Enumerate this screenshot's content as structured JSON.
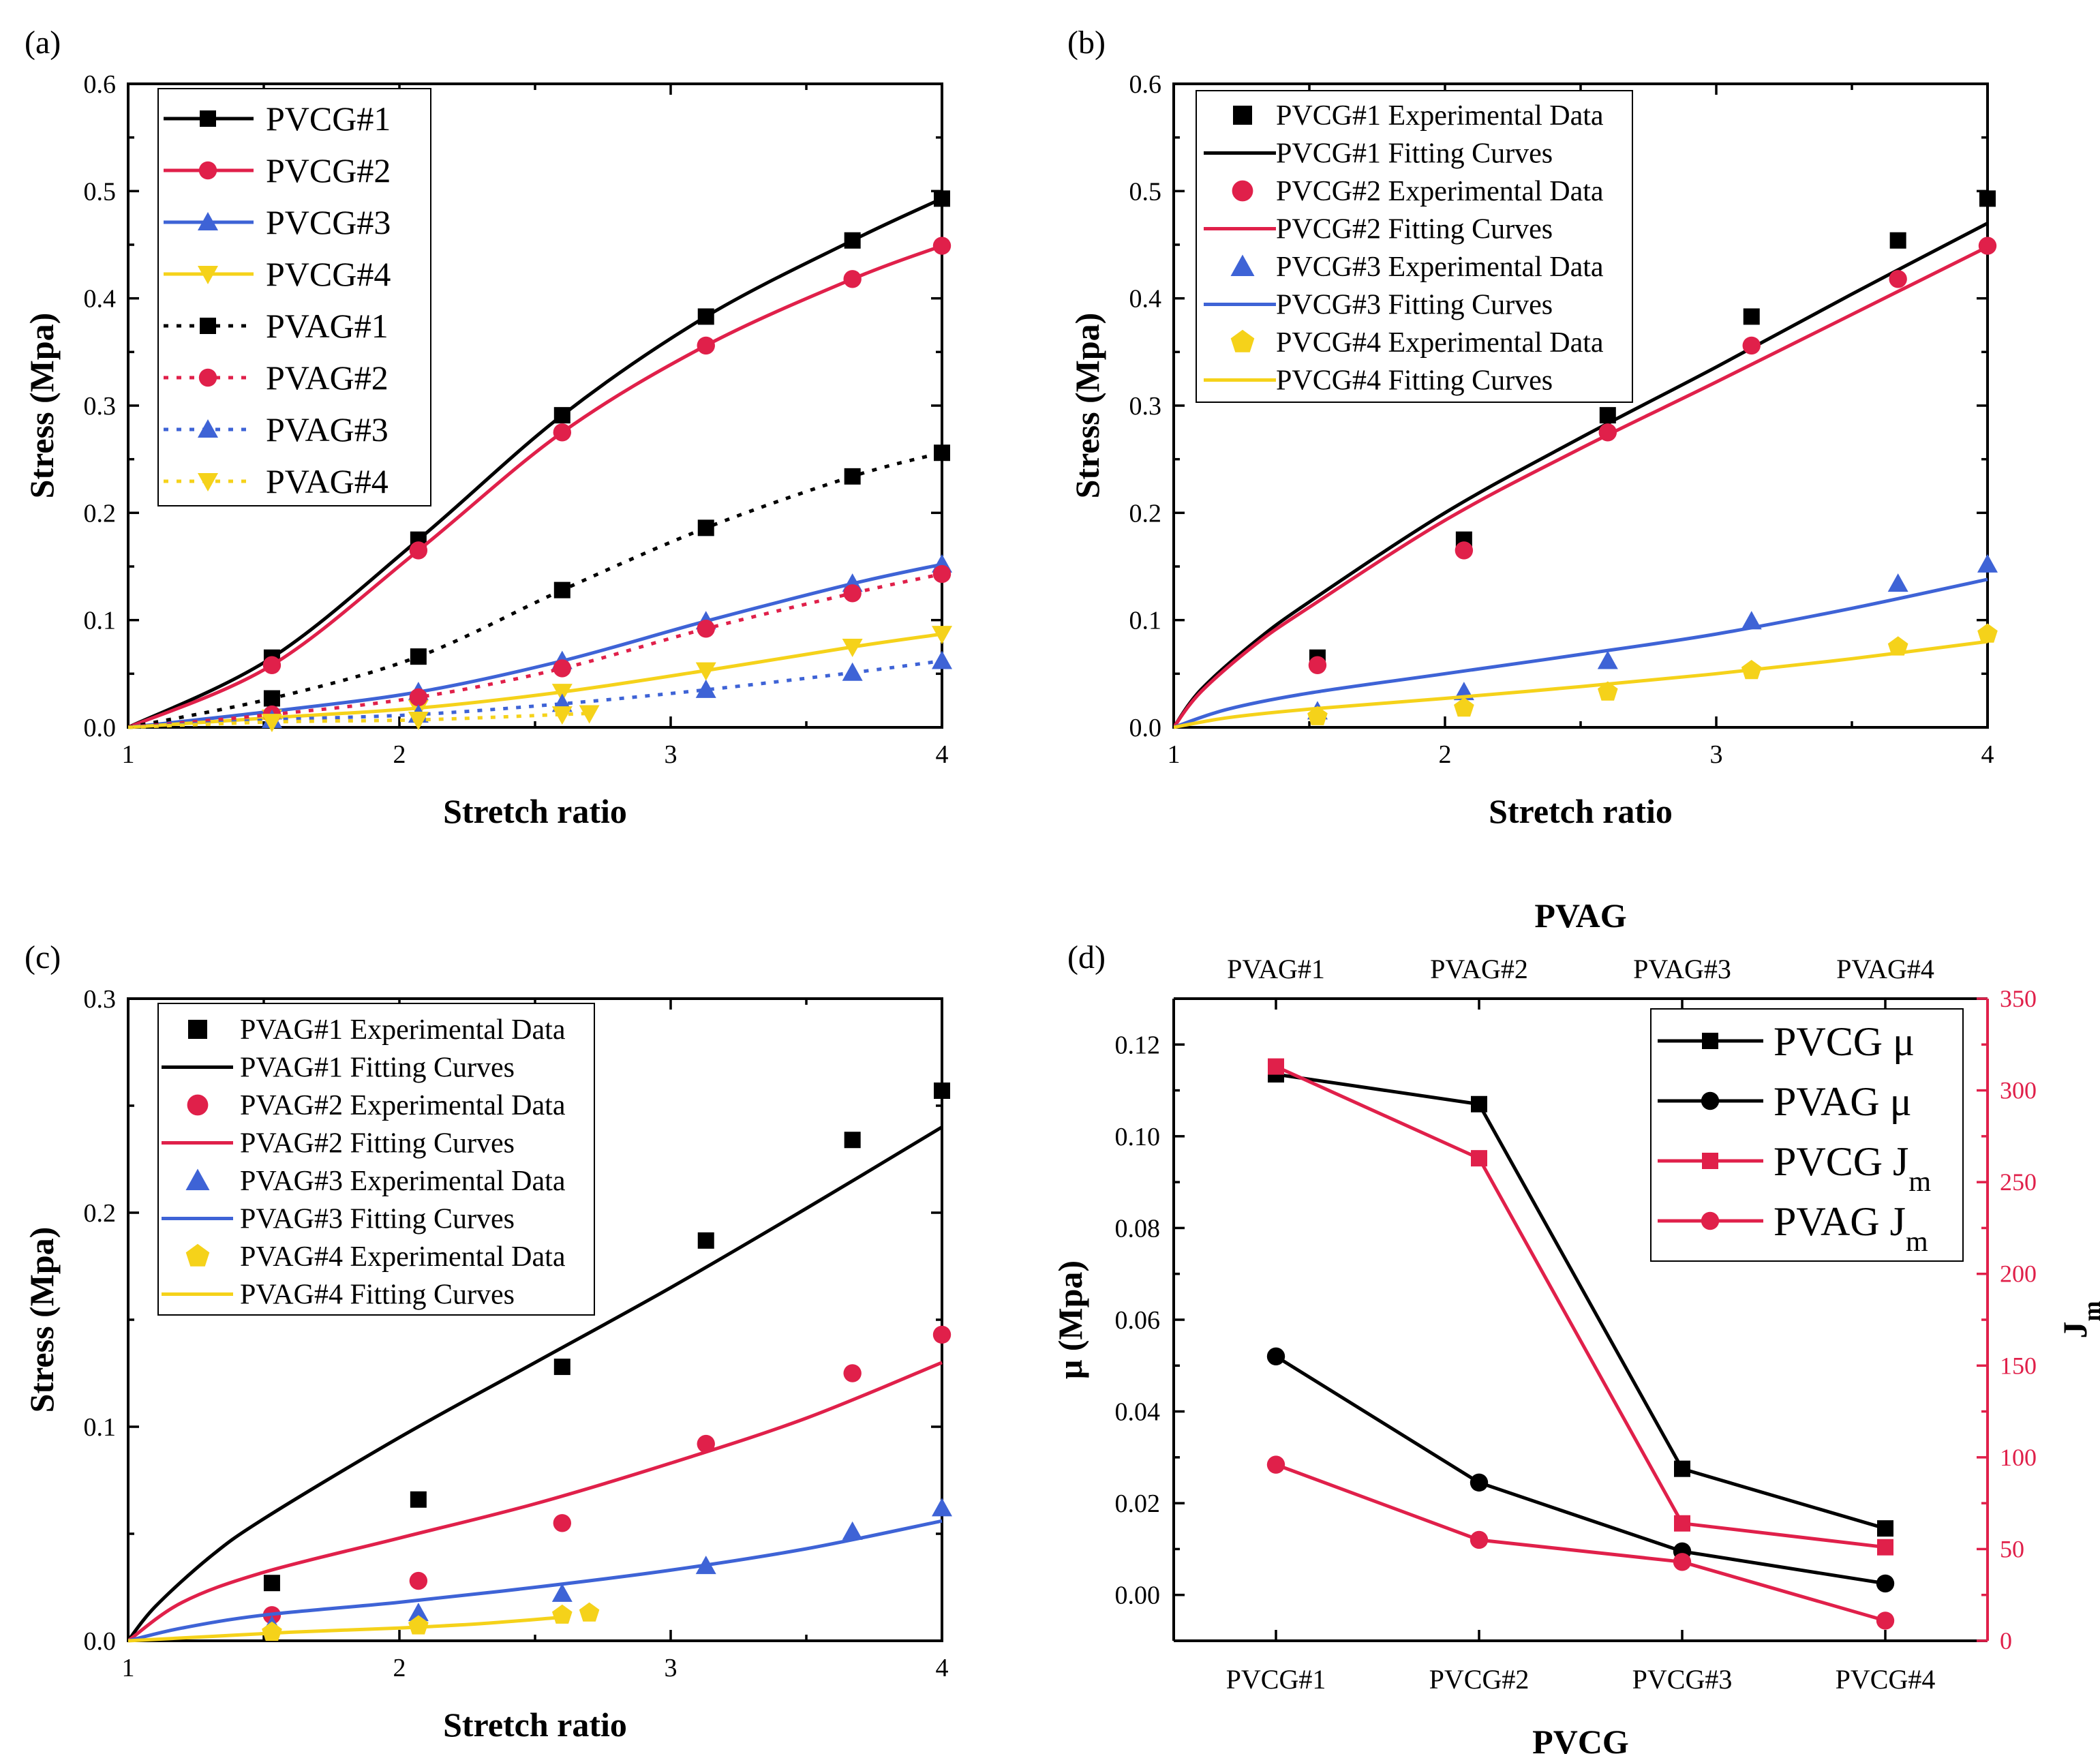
{
  "colors": {
    "black": "#000000",
    "red": "#e0204a",
    "blue": "#3e63d6",
    "yellow": "#f5d21a",
    "axis_red": "#e0204a"
  },
  "chart_data": [
    {
      "panel": "(a)",
      "type": "line",
      "title": "",
      "xlabel": "Stretch ratio",
      "ylabel": "Stress (Mpa)",
      "xlim": [
        1,
        4
      ],
      "ylim": [
        0,
        0.6
      ],
      "xticks": [
        "1",
        "2",
        "3",
        "4"
      ],
      "yticks": [
        "0.0",
        "0.1",
        "0.2",
        "0.3",
        "0.4",
        "0.5",
        "0.6"
      ],
      "legend_position": "top-left",
      "series": [
        {
          "name": "PVCG#1",
          "color": "black",
          "marker": "square",
          "dash": "solid",
          "x": [
            1.0,
            1.53,
            2.07,
            2.6,
            3.13,
            3.67,
            4.0
          ],
          "y": [
            0.0,
            0.065,
            0.175,
            0.291,
            0.383,
            0.454,
            0.493
          ]
        },
        {
          "name": "PVCG#2",
          "color": "red",
          "marker": "circle",
          "dash": "solid",
          "x": [
            1.0,
            1.53,
            2.07,
            2.6,
            3.13,
            3.67,
            4.0
          ],
          "y": [
            0.0,
            0.058,
            0.165,
            0.275,
            0.356,
            0.418,
            0.449
          ]
        },
        {
          "name": "PVCG#3",
          "color": "blue",
          "marker": "triangle-up",
          "dash": "solid",
          "x": [
            1.0,
            1.53,
            2.07,
            2.6,
            3.13,
            3.67,
            4.0
          ],
          "y": [
            0.0,
            0.015,
            0.033,
            0.062,
            0.099,
            0.134,
            0.152
          ]
        },
        {
          "name": "PVCG#4",
          "color": "yellow",
          "marker": "triangle-down",
          "dash": "solid",
          "x": [
            1.0,
            1.53,
            2.07,
            2.6,
            3.13,
            3.67,
            4.0
          ],
          "y": [
            0.0,
            0.009,
            0.018,
            0.033,
            0.053,
            0.075,
            0.087
          ]
        },
        {
          "name": "PVAG#1",
          "color": "black",
          "marker": "square",
          "dash": "dotted",
          "x": [
            1.0,
            1.53,
            2.07,
            2.6,
            3.13,
            3.67,
            4.0
          ],
          "y": [
            0.0,
            0.027,
            0.066,
            0.128,
            0.186,
            0.234,
            0.256
          ]
        },
        {
          "name": "PVAG#2",
          "color": "red",
          "marker": "circle",
          "dash": "dotted",
          "x": [
            1.0,
            1.53,
            2.07,
            2.6,
            3.13,
            3.67,
            4.0
          ],
          "y": [
            0.0,
            0.012,
            0.028,
            0.055,
            0.092,
            0.125,
            0.143
          ]
        },
        {
          "name": "PVAG#3",
          "color": "blue",
          "marker": "triangle-up",
          "dash": "dotted",
          "x": [
            1.0,
            1.53,
            2.07,
            2.6,
            3.13,
            3.67,
            4.0
          ],
          "y": [
            0.0,
            0.007,
            0.012,
            0.022,
            0.035,
            0.051,
            0.062
          ]
        },
        {
          "name": "PVAG#4",
          "color": "yellow",
          "marker": "triangle-down",
          "dash": "dotted",
          "x": [
            1.0,
            1.53,
            2.07,
            2.6,
            2.7
          ],
          "y": [
            0.0,
            0.005,
            0.007,
            0.012,
            0.013
          ]
        }
      ]
    },
    {
      "panel": "(b)",
      "type": "scatter",
      "title": "",
      "xlabel": "Stretch ratio",
      "ylabel": "Stress (Mpa)",
      "xlim": [
        1,
        4
      ],
      "ylim": [
        0,
        0.6
      ],
      "xticks": [
        "1",
        "2",
        "3",
        "4"
      ],
      "yticks": [
        "0.0",
        "0.1",
        "0.2",
        "0.3",
        "0.4",
        "0.5",
        "0.6"
      ],
      "legend_position": "top-left",
      "series": [
        {
          "name": "PVCG#1 Experimental Data",
          "color": "black",
          "marker": "square",
          "x": [
            1.53,
            2.07,
            2.6,
            3.13,
            3.67,
            4.0
          ],
          "y": [
            0.065,
            0.175,
            0.291,
            0.383,
            0.454,
            0.493
          ]
        },
        {
          "name": "PVCG#1 Fitting Curves",
          "color": "black",
          "marker": "none",
          "dash": "solid",
          "x": [
            1.0,
            1.1,
            1.3,
            1.5,
            2.0,
            2.5,
            3.0,
            3.5,
            4.0
          ],
          "y": [
            0.0,
            0.035,
            0.08,
            0.117,
            0.2,
            0.27,
            0.336,
            0.404,
            0.47
          ]
        },
        {
          "name": "PVCG#2 Experimental Data",
          "color": "red",
          "marker": "circle",
          "x": [
            1.53,
            2.07,
            2.6,
            3.13,
            3.67,
            4.0
          ],
          "y": [
            0.058,
            0.165,
            0.275,
            0.356,
            0.418,
            0.449
          ]
        },
        {
          "name": "PVCG#2 Fitting Curves",
          "color": "red",
          "marker": "none",
          "dash": "solid",
          "x": [
            1.0,
            1.1,
            1.3,
            1.5,
            2.0,
            2.5,
            3.0,
            3.5,
            4.0
          ],
          "y": [
            0.0,
            0.033,
            0.077,
            0.112,
            0.193,
            0.26,
            0.322,
            0.385,
            0.448
          ]
        },
        {
          "name": "PVCG#3 Experimental Data",
          "color": "blue",
          "marker": "triangle-up",
          "x": [
            1.53,
            2.07,
            2.6,
            3.13,
            3.67,
            4.0
          ],
          "y": [
            0.015,
            0.033,
            0.062,
            0.099,
            0.134,
            0.152
          ]
        },
        {
          "name": "PVCG#3 Fitting Curves",
          "color": "blue",
          "marker": "none",
          "dash": "solid",
          "x": [
            1.0,
            1.2,
            1.5,
            2.0,
            2.5,
            3.0,
            3.5,
            4.0
          ],
          "y": [
            0.0,
            0.017,
            0.032,
            0.05,
            0.068,
            0.087,
            0.111,
            0.138
          ]
        },
        {
          "name": "PVCG#4 Experimental Data",
          "color": "yellow",
          "marker": "pentagon",
          "x": [
            1.53,
            2.07,
            2.6,
            3.13,
            3.67,
            4.0
          ],
          "y": [
            0.01,
            0.018,
            0.033,
            0.053,
            0.075,
            0.087
          ]
        },
        {
          "name": "PVCG#4 Fitting Curves",
          "color": "yellow",
          "marker": "none",
          "dash": "solid",
          "x": [
            1.0,
            1.2,
            1.5,
            2.0,
            2.5,
            3.0,
            3.5,
            4.0
          ],
          "y": [
            0.0,
            0.009,
            0.017,
            0.027,
            0.038,
            0.05,
            0.064,
            0.08
          ]
        }
      ]
    },
    {
      "panel": "(c)",
      "type": "scatter",
      "title": "",
      "xlabel": "Stretch ratio",
      "ylabel": "Stress (Mpa)",
      "xlim": [
        1,
        4
      ],
      "ylim": [
        0,
        0.3
      ],
      "xticks": [
        "1",
        "2",
        "3",
        "4"
      ],
      "yticks": [
        "0.0",
        "0.1",
        "0.2",
        "0.3"
      ],
      "legend_position": "top-left",
      "series": [
        {
          "name": "PVAG#1 Experimental Data",
          "color": "black",
          "marker": "square",
          "x": [
            1.53,
            2.07,
            2.6,
            3.13,
            3.67,
            4.0
          ],
          "y": [
            0.027,
            0.066,
            0.128,
            0.187,
            0.234,
            0.257
          ]
        },
        {
          "name": "PVAG#1 Fitting Curves",
          "color": "black",
          "marker": "none",
          "dash": "solid",
          "x": [
            1.0,
            1.1,
            1.3,
            1.5,
            2.0,
            2.5,
            3.0,
            3.5,
            4.0
          ],
          "y": [
            0.0,
            0.016,
            0.039,
            0.057,
            0.095,
            0.13,
            0.165,
            0.202,
            0.24
          ]
        },
        {
          "name": "PVAG#2 Experimental Data",
          "color": "red",
          "marker": "circle",
          "x": [
            1.53,
            2.07,
            2.6,
            3.13,
            3.67,
            4.0
          ],
          "y": [
            0.012,
            0.028,
            0.055,
            0.092,
            0.125,
            0.143
          ]
        },
        {
          "name": "PVAG#2 Fitting Curves",
          "color": "red",
          "marker": "none",
          "dash": "solid",
          "x": [
            1.0,
            1.2,
            1.5,
            2.0,
            2.5,
            3.0,
            3.5,
            4.0
          ],
          "y": [
            0.0,
            0.018,
            0.032,
            0.048,
            0.064,
            0.083,
            0.104,
            0.13
          ]
        },
        {
          "name": "PVAG#3 Experimental Data",
          "color": "blue",
          "marker": "triangle-up",
          "x": [
            1.53,
            2.07,
            2.6,
            3.13,
            3.67,
            4.0
          ],
          "y": [
            0.007,
            0.013,
            0.022,
            0.035,
            0.051,
            0.062
          ]
        },
        {
          "name": "PVAG#3 Fitting Curves",
          "color": "blue",
          "marker": "none",
          "dash": "solid",
          "x": [
            1.0,
            1.2,
            1.5,
            2.0,
            2.5,
            3.0,
            3.5,
            4.0
          ],
          "y": [
            0.0,
            0.006,
            0.012,
            0.018,
            0.025,
            0.033,
            0.043,
            0.056
          ]
        },
        {
          "name": "PVAG#4 Experimental Data",
          "color": "yellow",
          "marker": "pentagon",
          "x": [
            1.53,
            2.07,
            2.6,
            2.7
          ],
          "y": [
            0.004,
            0.007,
            0.012,
            0.013
          ]
        },
        {
          "name": "PVAG#4 Fitting Curves",
          "color": "yellow",
          "marker": "none",
          "dash": "solid",
          "x": [
            1.0,
            1.3,
            1.6,
            2.0,
            2.3,
            2.6
          ],
          "y": [
            0.0,
            0.002,
            0.004,
            0.006,
            0.008,
            0.011
          ]
        }
      ]
    },
    {
      "panel": "(d)",
      "type": "line",
      "title": "",
      "xlabel": "PVCG",
      "top_xlabel": "PVAG",
      "ylabel": "μ (Mpa)",
      "y2label": "J",
      "y2label_sub": "m",
      "categories": [
        "PVCG#1",
        "PVCG#2",
        "PVCG#3",
        "PVCG#4"
      ],
      "top_categories": [
        "PVAG#1",
        "PVAG#2",
        "PVAG#3",
        "PVAG#4"
      ],
      "ylim": [
        -0.01,
        0.13
      ],
      "yticks": [
        "0.00",
        "0.02",
        "0.04",
        "0.06",
        "0.08",
        "0.10",
        "0.12"
      ],
      "y2lim": [
        0,
        350
      ],
      "y2ticks": [
        "0",
        "50",
        "100",
        "150",
        "200",
        "250",
        "300",
        "350"
      ],
      "legend_position": "top-right",
      "series": [
        {
          "name": "PVCG μ",
          "label_main": "PVCG μ",
          "label_sub": "",
          "color": "black",
          "marker": "square",
          "axis": "left",
          "values": [
            0.1135,
            0.107,
            0.0275,
            0.0145
          ]
        },
        {
          "name": "PVAG μ",
          "label_main": "PVAG μ",
          "label_sub": "",
          "color": "black",
          "marker": "circle",
          "axis": "left",
          "values": [
            0.052,
            0.0245,
            0.0095,
            0.0025
          ]
        },
        {
          "name": "PVCG Jm",
          "label_main": "PVCG J",
          "label_sub": "m",
          "color": "red",
          "marker": "square",
          "axis": "right",
          "values": [
            313,
            263,
            64,
            51
          ]
        },
        {
          "name": "PVAG Jm",
          "label_main": "PVAG J",
          "label_sub": "m",
          "color": "red",
          "marker": "circle",
          "axis": "right",
          "values": [
            96,
            55,
            43,
            11
          ]
        }
      ]
    }
  ]
}
